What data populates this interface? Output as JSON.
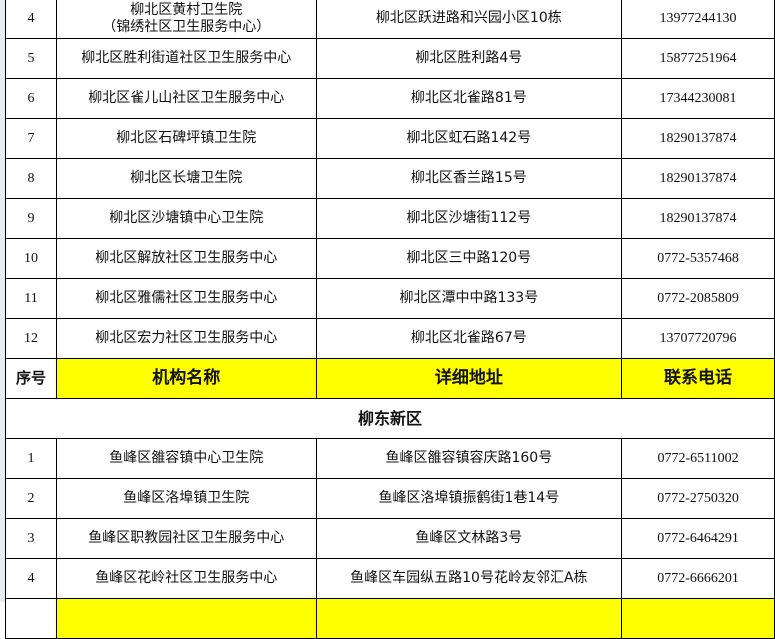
{
  "header": {
    "index": "序号",
    "name": "机构名称",
    "address": "详细地址",
    "phone": "联系电话"
  },
  "colors": {
    "header_bg": "#ffff00"
  },
  "group1_rows": [
    {
      "index": "4",
      "name_line1": "柳北区黄村卫生院",
      "name_line2": "（锦绣社区卫生服务中心）",
      "address": "柳北区跃进路和兴园小区10栋",
      "phone": "13977244130"
    },
    {
      "index": "5",
      "name": "柳北区胜利街道社区卫生服务中心",
      "address": "柳北区胜利路4号",
      "phone": "15877251964"
    },
    {
      "index": "6",
      "name": "柳北区雀儿山社区卫生服务中心",
      "address": "柳北区北雀路81号",
      "phone": "17344230081"
    },
    {
      "index": "7",
      "name": "柳北区石碑坪镇卫生院",
      "address": "柳北区虹石路142号",
      "phone": "18290137874"
    },
    {
      "index": "8",
      "name": "柳北区长塘卫生院",
      "address": "柳北区香兰路15号",
      "phone": "18290137874"
    },
    {
      "index": "9",
      "name": "柳北区沙塘镇中心卫生院",
      "address": "柳北区沙塘街112号",
      "phone": "18290137874"
    },
    {
      "index": "10",
      "name": "柳北区解放社区卫生服务中心",
      "address": "柳北区三中路120号",
      "phone": "0772-5357468"
    },
    {
      "index": "11",
      "name": "柳北区雅儒社区卫生服务中心",
      "address": "柳北区潭中中路133号",
      "phone": "0772-2085809"
    },
    {
      "index": "12",
      "name": "柳北区宏力社区卫生服务中心",
      "address": "柳北区北雀路67号",
      "phone": "13707720796"
    }
  ],
  "section_title": "柳东新区",
  "group2_rows": [
    {
      "index": "1",
      "name": "鱼峰区雒容镇中心卫生院",
      "address": "鱼峰区雒容镇容庆路160号",
      "phone": "0772-6511002"
    },
    {
      "index": "2",
      "name": "鱼峰区洛埠镇卫生院",
      "address": "鱼峰区洛埠镇振鹤街1巷14号",
      "phone": "0772-2750320"
    },
    {
      "index": "3",
      "name": "鱼峰区职教园社区卫生服务中心",
      "address": "鱼峰区文林路3号",
      "phone": "0772-6464291"
    },
    {
      "index": "4",
      "name": "鱼峰区花岭社区卫生服务中心",
      "address": "鱼峰区车园纵五路10号花岭友邻汇A栋",
      "phone": "0772-6666201"
    }
  ]
}
